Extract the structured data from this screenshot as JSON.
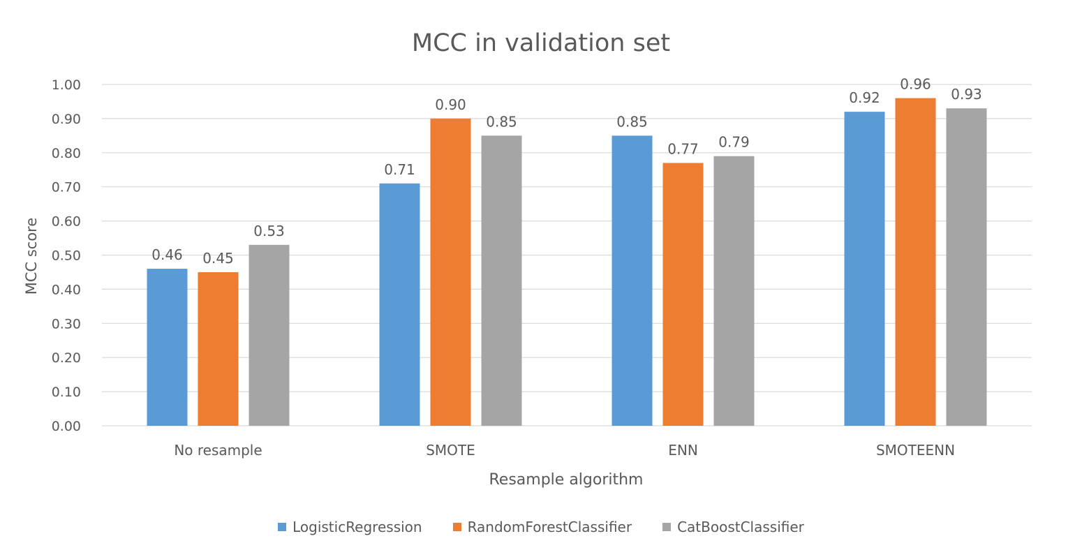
{
  "chart_data": {
    "type": "bar",
    "title": "MCC in validation set",
    "xlabel": "Resample algorithm",
    "ylabel": "MCC score",
    "ylim": [
      0,
      1
    ],
    "yticks": [
      "0.00",
      "0.10",
      "0.20",
      "0.30",
      "0.40",
      "0.50",
      "0.60",
      "0.70",
      "0.80",
      "0.90",
      "1.00"
    ],
    "grid": true,
    "legend_position": "bottom",
    "categories": [
      "No resample",
      "SMOTE",
      "ENN",
      "SMOTEENN"
    ],
    "series": [
      {
        "name": "LogisticRegression",
        "color": "#5B9BD5",
        "values": [
          0.46,
          0.71,
          0.85,
          0.92
        ],
        "labels": [
          "0.46",
          "0.71",
          "0.85",
          "0.92"
        ]
      },
      {
        "name": "RandomForestClassifier",
        "color": "#ED7D31",
        "values": [
          0.45,
          0.9,
          0.77,
          0.96
        ],
        "labels": [
          "0.45",
          "0.90",
          "0.77",
          "0.96"
        ]
      },
      {
        "name": "CatBoostClassifier",
        "color": "#A5A5A5",
        "values": [
          0.53,
          0.85,
          0.79,
          0.93
        ],
        "labels": [
          "0.53",
          "0.85",
          "0.79",
          "0.93"
        ]
      }
    ]
  }
}
